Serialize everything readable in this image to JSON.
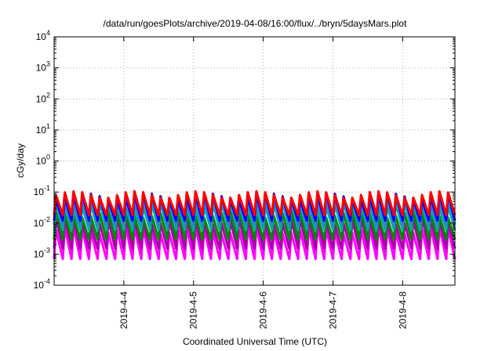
{
  "chart_data": {
    "type": "line",
    "title": "/data/run/goesPlots/archive/2019-04-08/16:00/flux/../bryn/5daysMars.plot",
    "xlabel": "Coordinated Universal Time (UTC)",
    "ylabel": "cGy/day",
    "y_scale": "log",
    "ylim": [
      0.0001,
      10000
    ],
    "xlim": [
      "2019-04-03T00:00",
      "2019-04-08T18:00"
    ],
    "grid": true,
    "legend": "none",
    "y_ticks": [
      {
        "base": "10",
        "exp": "-4",
        "value": 0.0001
      },
      {
        "base": "10",
        "exp": "-3",
        "value": 0.001
      },
      {
        "base": "10",
        "exp": "-2",
        "value": 0.01
      },
      {
        "base": "10",
        "exp": "-1",
        "value": 0.1
      },
      {
        "base": "10",
        "exp": "0",
        "value": 1
      },
      {
        "base": "10",
        "exp": "1",
        "value": 10
      },
      {
        "base": "10",
        "exp": "2",
        "value": 100
      },
      {
        "base": "10",
        "exp": "3",
        "value": 1000
      },
      {
        "base": "10",
        "exp": "4",
        "value": 10000
      }
    ],
    "x_ticks": [
      "2019-4-4",
      "2019-4-5",
      "2019-4-6",
      "2019-4-7",
      "2019-4-8"
    ],
    "period_hours": 3,
    "cycle_peak_values": [
      0.08,
      0.035,
      0.012,
      0.004,
      0.0015
    ],
    "cycle_trough_values": [
      0.015,
      0.006,
      0.002,
      0.0008,
      0.0006
    ],
    "series": [
      {
        "color": "#ff0000",
        "peak": 0.085,
        "trough": 0.018
      },
      {
        "color": "#0000ff",
        "peak": 0.075,
        "trough": 0.012
      },
      {
        "color": "#3a7bd5",
        "peak": 0.06,
        "trough": 0.009
      },
      {
        "color": "#00aaaa",
        "peak": 0.04,
        "trough": 0.006
      },
      {
        "color": "#008800",
        "peak": 0.02,
        "trough": 0.003
      },
      {
        "color": "#aa00aa",
        "peak": 0.012,
        "trough": 0.0015
      },
      {
        "color": "#ff00ff",
        "peak": 0.006,
        "trough": 0.0007
      }
    ]
  }
}
